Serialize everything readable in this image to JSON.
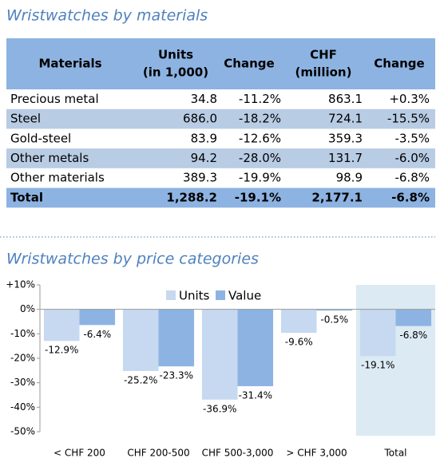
{
  "table": {
    "title": "Wristwatches by materials",
    "columns": [
      [
        "Materials"
      ],
      [
        "Units",
        "(in 1,000)"
      ],
      [
        "Change"
      ],
      [
        "CHF",
        "(million)"
      ],
      [
        "Change"
      ]
    ],
    "rows": [
      [
        "Precious metal",
        "34.8",
        "-11.2%",
        "863.1",
        "+0.3%"
      ],
      [
        "Steel",
        "686.0",
        "-18.2%",
        "724.1",
        "-15.5%"
      ],
      [
        "Gold-steel",
        "83.9",
        "-12.6%",
        "359.3",
        "-3.5%"
      ],
      [
        "Other metals",
        "94.2",
        "-28.0%",
        "131.7",
        "-6.0%"
      ],
      [
        "Other materials",
        "389.3",
        "-19.9%",
        "98.9",
        "-6.8%"
      ],
      [
        "Total",
        "1,288.2",
        "-19.1%",
        "2,177.1",
        "-6.8%"
      ]
    ]
  },
  "chart_data": {
    "type": "bar",
    "title": "Wristwatches by price categories",
    "categories": [
      "< CHF 200",
      "CHF 200-500",
      "CHF 500-3,000",
      "> CHF 3,000",
      "Total"
    ],
    "series": [
      {
        "name": "Units",
        "color": "#c6d9f0",
        "values": [
          -12.9,
          -25.2,
          -36.9,
          -9.6,
          -19.1
        ],
        "value_labels": [
          "-12.9%",
          "-25.2%",
          "-36.9%",
          "-9.6%",
          "-19.1%"
        ]
      },
      {
        "name": "Value",
        "color": "#8db3e2",
        "values": [
          -6.4,
          -23.3,
          -31.4,
          -0.5,
          -6.8
        ],
        "value_labels": [
          "-6.4%",
          "-23.3%",
          "-31.4%",
          "-0.5%",
          "-6.8%"
        ]
      }
    ],
    "ylim": [
      -50,
      10
    ],
    "yticks": [
      {
        "value": 10,
        "label": "+10%"
      },
      {
        "value": 0,
        "label": "0%"
      },
      {
        "value": -10,
        "label": "-10%"
      },
      {
        "value": -20,
        "label": "-20%"
      },
      {
        "value": -30,
        "label": "-30%"
      },
      {
        "value": -40,
        "label": "-40%"
      },
      {
        "value": -50,
        "label": "-50%"
      }
    ],
    "legend": "top",
    "highlight_background": "#dbeaf3"
  }
}
